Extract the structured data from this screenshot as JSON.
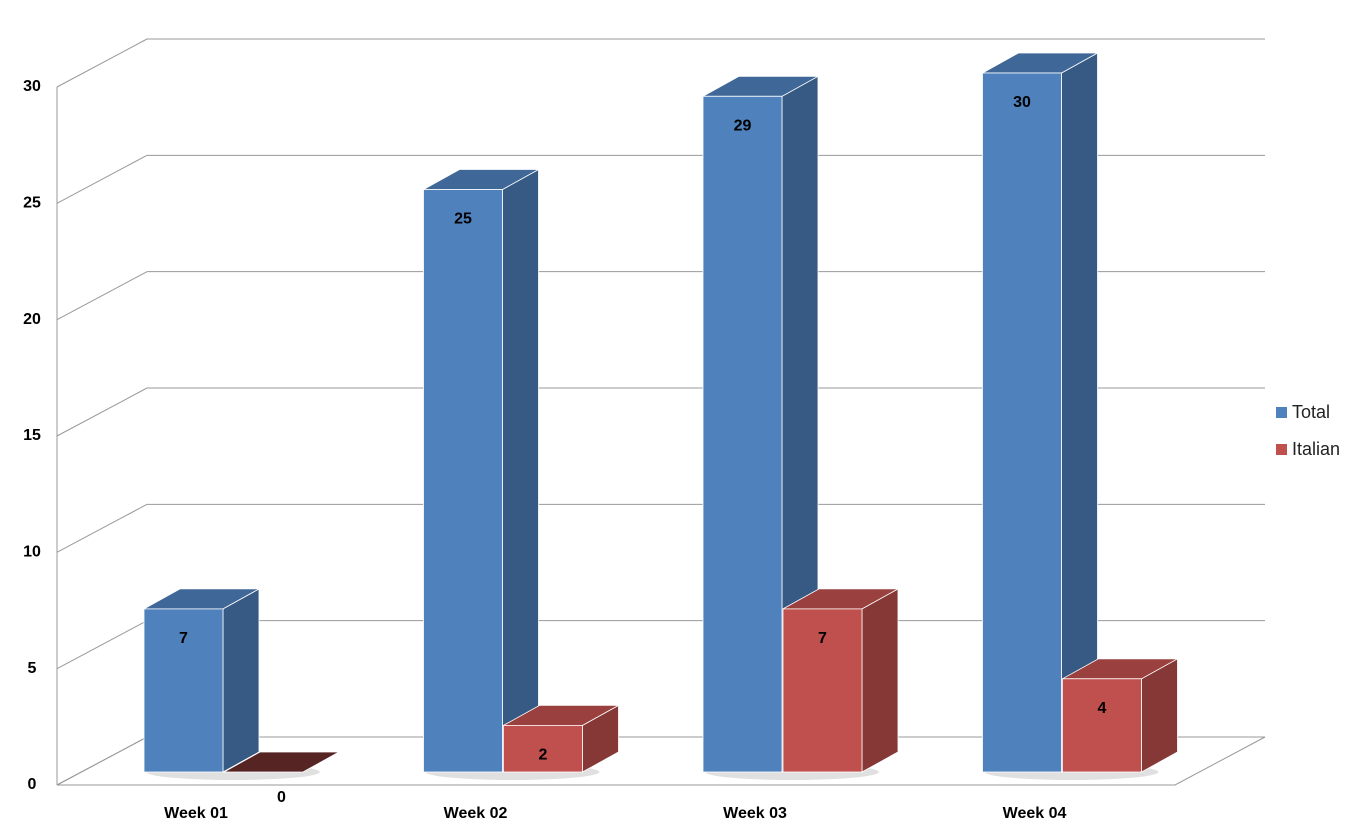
{
  "chart_data": {
    "type": "bar3d",
    "categories": [
      "Week 01",
      "Week 02",
      "Week 03",
      "Week 04"
    ],
    "series": [
      {
        "name": "Total",
        "color": "#4f81bd",
        "values": [
          7,
          25,
          29,
          30
        ]
      },
      {
        "name": "Italian",
        "color": "#c0504d",
        "values": [
          0,
          2,
          7,
          4
        ]
      }
    ],
    "ylim": [
      0,
      30
    ],
    "yticks": [
      0,
      5,
      10,
      15,
      20,
      25,
      30
    ],
    "grid": true,
    "legend": "right"
  }
}
